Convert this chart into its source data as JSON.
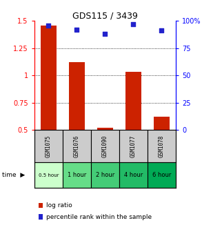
{
  "title": "GDS115 / 3439",
  "samples": [
    "GSM1075",
    "GSM1076",
    "GSM1090",
    "GSM1077",
    "GSM1078"
  ],
  "time_labels": [
    "0.5 hour",
    "1 hour",
    "2 hour",
    "4 hour",
    "6 hour"
  ],
  "log_ratio": [
    1.46,
    1.12,
    0.52,
    1.03,
    0.62
  ],
  "percentile": [
    96,
    92,
    88,
    97,
    91
  ],
  "bar_color": "#cc2200",
  "dot_color": "#2222cc",
  "ylim_left": [
    0.5,
    1.5
  ],
  "ylim_right": [
    0,
    100
  ],
  "yticks_left": [
    0.5,
    0.75,
    1.0,
    1.25,
    1.5
  ],
  "ytick_labels_left": [
    "0.5",
    "0.75",
    "1",
    "1.25",
    "1.5"
  ],
  "yticks_right": [
    0,
    25,
    50,
    75,
    100
  ],
  "ytick_labels_right": [
    "0",
    "25",
    "50",
    "75",
    "100%"
  ],
  "grid_yticks": [
    0.75,
    1.0,
    1.25
  ],
  "sample_bg_color": "#cccccc",
  "time_bg_colors": [
    "#ccffcc",
    "#66dd88",
    "#44cc77",
    "#22bb66",
    "#00aa55"
  ],
  "legend_log_label": "log ratio",
  "legend_pct_label": "percentile rank within the sample",
  "bar_width": 0.55
}
